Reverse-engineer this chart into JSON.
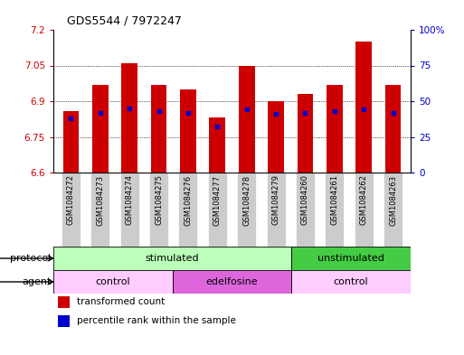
{
  "title": "GDS5544 / 7972247",
  "samples": [
    "GSM1084272",
    "GSM1084273",
    "GSM1084274",
    "GSM1084275",
    "GSM1084276",
    "GSM1084277",
    "GSM1084278",
    "GSM1084279",
    "GSM1084260",
    "GSM1084261",
    "GSM1084262",
    "GSM1084263"
  ],
  "bar_values": [
    6.86,
    6.97,
    7.06,
    6.97,
    6.95,
    6.83,
    7.05,
    6.9,
    6.93,
    6.97,
    7.15,
    6.97
  ],
  "dot_values": [
    38,
    42,
    45,
    43,
    42,
    32,
    44,
    41,
    42,
    43,
    44,
    42
  ],
  "bar_color": "#cc0000",
  "dot_color": "#0000cc",
  "ymin": 6.6,
  "ymax": 7.2,
  "yticks": [
    6.6,
    6.75,
    6.9,
    7.05,
    7.2
  ],
  "ytick_labels": [
    "6.6",
    "6.75",
    "6.9",
    "7.05",
    "7.2"
  ],
  "y2min": 0,
  "y2max": 100,
  "y2ticks": [
    0,
    25,
    50,
    75,
    100
  ],
  "y2tick_labels": [
    "0",
    "25",
    "50",
    "75",
    "100%"
  ],
  "protocol_labels": [
    {
      "text": "stimulated",
      "start": 0,
      "end": 8,
      "color": "#bbffbb"
    },
    {
      "text": "unstimulated",
      "start": 8,
      "end": 12,
      "color": "#44cc44"
    }
  ],
  "agent_labels": [
    {
      "text": "control",
      "start": 0,
      "end": 4,
      "color": "#ffccff"
    },
    {
      "text": "edelfosine",
      "start": 4,
      "end": 8,
      "color": "#dd66dd"
    },
    {
      "text": "control",
      "start": 8,
      "end": 12,
      "color": "#ffccff"
    }
  ],
  "protocol_row_label": "protocol",
  "agent_row_label": "agent",
  "legend_items": [
    {
      "label": "transformed count",
      "color": "#cc0000"
    },
    {
      "label": "percentile rank within the sample",
      "color": "#0000cc"
    }
  ],
  "bar_width": 0.55,
  "axis_label_color_left": "#cc0000",
  "axis_label_color_right": "#0000cc",
  "bg_color": "#ffffff",
  "plot_bg_color": "#ffffff",
  "grid_color": "#000000",
  "sample_box_color": "#cccccc"
}
